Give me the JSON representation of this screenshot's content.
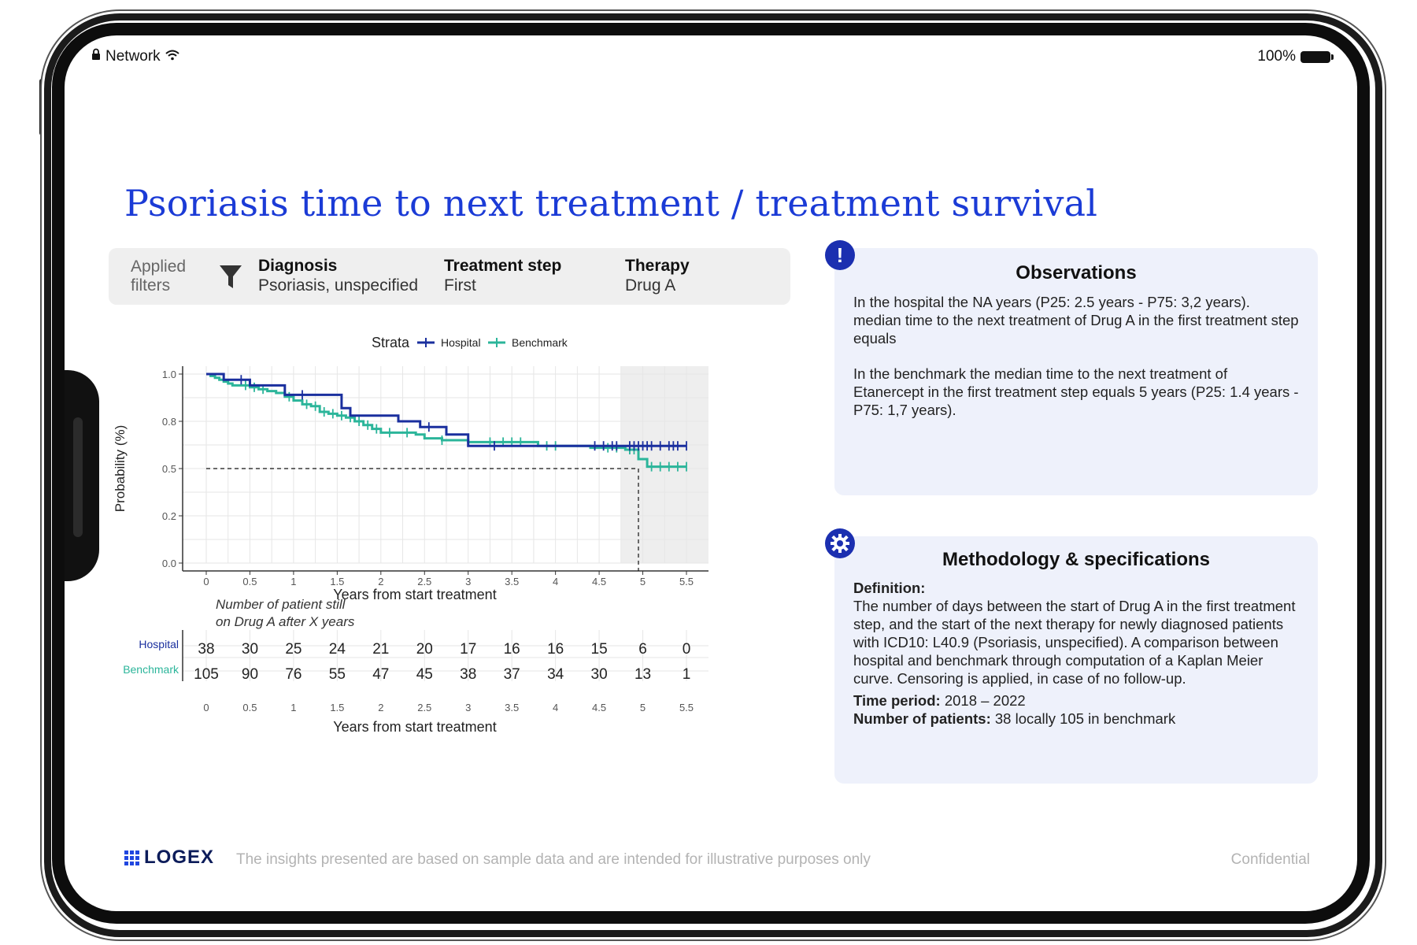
{
  "status_bar": {
    "network_label": "Network",
    "battery_label": "100%"
  },
  "page_title": "Psoriasis time to next treatment / treatment survival",
  "filters": {
    "label": "Applied filters",
    "items": [
      {
        "heading": "Diagnosis",
        "value": "Psoriasis, unspecified"
      },
      {
        "heading": "Treatment step",
        "value": "First"
      },
      {
        "heading": "Therapy",
        "value": "Drug A"
      }
    ]
  },
  "observations": {
    "title": "Observations",
    "paragraphs": [
      "In the hospital the NA years (P25: 2.5 years - P75: 3,2 years). median time to the next treatment of Drug A in the first treatment step equals",
      "In the benchmark the median time to the next treatment of Etanercept in the first treatment step equals 5 years (P25: 1.4 years - P75: 1,7 years)."
    ]
  },
  "methodology": {
    "title": "Methodology & specifications",
    "definition_label": "Definition:",
    "definition_text": "The number of days between the start of Drug A in the first treatment step, and the start of the next therapy for newly diagnosed patients with ICD10: L40.9 (Psoriasis, unspecified). A comparison between hospital and benchmark through computation of a Kaplan Meier curve. Censoring is applied, in case of no follow-up.",
    "time_period_label": "Time period:",
    "time_period_value": "2018 – 2022",
    "patients_label": "Number of patients:",
    "patients_value": "38 locally 105 in benchmark"
  },
  "footer": {
    "logo_text": "LOGEX",
    "disclaimer": "The insights presented are based on sample data and are intended for illustrative purposes only",
    "confidential": "Confidential"
  },
  "colors": {
    "hospital": "#1a2f9e",
    "benchmark": "#2bb59a",
    "title": "#1b3bd6"
  },
  "chart_data": {
    "type": "line",
    "title": "",
    "legend_title": "Strata",
    "xlabel": "Years from start treatment",
    "ylabel": "Probability (%)",
    "xlim": [
      0,
      5.5
    ],
    "ylim": [
      0,
      1.0
    ],
    "x_ticks": [
      0,
      0.5,
      1,
      1.5,
      2,
      2.5,
      3,
      3.5,
      4,
      4.5,
      5,
      5.5
    ],
    "x_tick_labels": [
      "0",
      "0.5",
      "1",
      "1.5",
      "2",
      "2.5",
      "3",
      "3.5",
      "4",
      "4.5",
      "5",
      "5.5"
    ],
    "y_ticks": [
      0,
      0.25,
      0.5,
      0.75,
      1.0
    ],
    "y_tick_labels": [
      "0.0",
      "0.2",
      "0.5",
      "0.8",
      "1.0"
    ],
    "reference_line": {
      "y": 0.5,
      "x_median": 4.95
    },
    "shaded_x_range": [
      4.75,
      5.5
    ],
    "series": [
      {
        "name": "Hospital",
        "steps": [
          [
            0,
            1.0
          ],
          [
            0.2,
            0.97
          ],
          [
            0.5,
            0.94
          ],
          [
            0.9,
            0.89
          ],
          [
            1.55,
            0.82
          ],
          [
            1.65,
            0.78
          ],
          [
            2.2,
            0.75
          ],
          [
            2.45,
            0.72
          ],
          [
            2.75,
            0.68
          ],
          [
            3.0,
            0.62
          ],
          [
            5.5,
            0.62
          ]
        ],
        "censor_x": [
          0.4,
          1.1,
          2.55,
          3.3,
          4.45,
          4.55,
          4.65,
          4.7,
          4.85,
          4.9,
          4.95,
          5.0,
          5.05,
          5.1,
          5.2,
          5.3,
          5.35,
          5.4,
          5.5
        ]
      },
      {
        "name": "Benchmark",
        "steps": [
          [
            0,
            1.0
          ],
          [
            0.05,
            0.99
          ],
          [
            0.1,
            0.98
          ],
          [
            0.15,
            0.97
          ],
          [
            0.2,
            0.96
          ],
          [
            0.25,
            0.95
          ],
          [
            0.3,
            0.94
          ],
          [
            0.5,
            0.93
          ],
          [
            0.6,
            0.92
          ],
          [
            0.7,
            0.91
          ],
          [
            0.8,
            0.9
          ],
          [
            0.9,
            0.88
          ],
          [
            1.0,
            0.86
          ],
          [
            1.1,
            0.84
          ],
          [
            1.2,
            0.83
          ],
          [
            1.3,
            0.8
          ],
          [
            1.4,
            0.79
          ],
          [
            1.5,
            0.78
          ],
          [
            1.6,
            0.77
          ],
          [
            1.7,
            0.75
          ],
          [
            1.8,
            0.73
          ],
          [
            1.9,
            0.71
          ],
          [
            2.0,
            0.69
          ],
          [
            2.4,
            0.68
          ],
          [
            2.5,
            0.66
          ],
          [
            2.7,
            0.65
          ],
          [
            3.0,
            0.64
          ],
          [
            3.8,
            0.62
          ],
          [
            4.4,
            0.61
          ],
          [
            4.8,
            0.6
          ],
          [
            4.95,
            0.55
          ],
          [
            5.05,
            0.51
          ],
          [
            5.5,
            0.51
          ]
        ],
        "censor_x": [
          0.45,
          0.55,
          0.65,
          0.95,
          1.15,
          1.25,
          1.35,
          1.45,
          1.55,
          1.65,
          1.75,
          1.85,
          1.95,
          2.1,
          2.3,
          2.7,
          3.25,
          3.4,
          3.5,
          3.6,
          3.9,
          4.0,
          4.6,
          4.7,
          4.85,
          4.9,
          5.1,
          5.2,
          5.3,
          5.4,
          5.5
        ]
      }
    ],
    "risk_table": {
      "caption": "Number of patient still on Drug A after X years",
      "xlabel": "Years from start treatment",
      "rows": [
        {
          "name": "Hospital",
          "counts": [
            38,
            30,
            25,
            24,
            21,
            20,
            17,
            16,
            16,
            15,
            6,
            0
          ]
        },
        {
          "name": "Benchmark",
          "counts": [
            105,
            90,
            76,
            55,
            47,
            45,
            38,
            37,
            34,
            30,
            13,
            1
          ]
        }
      ]
    }
  }
}
